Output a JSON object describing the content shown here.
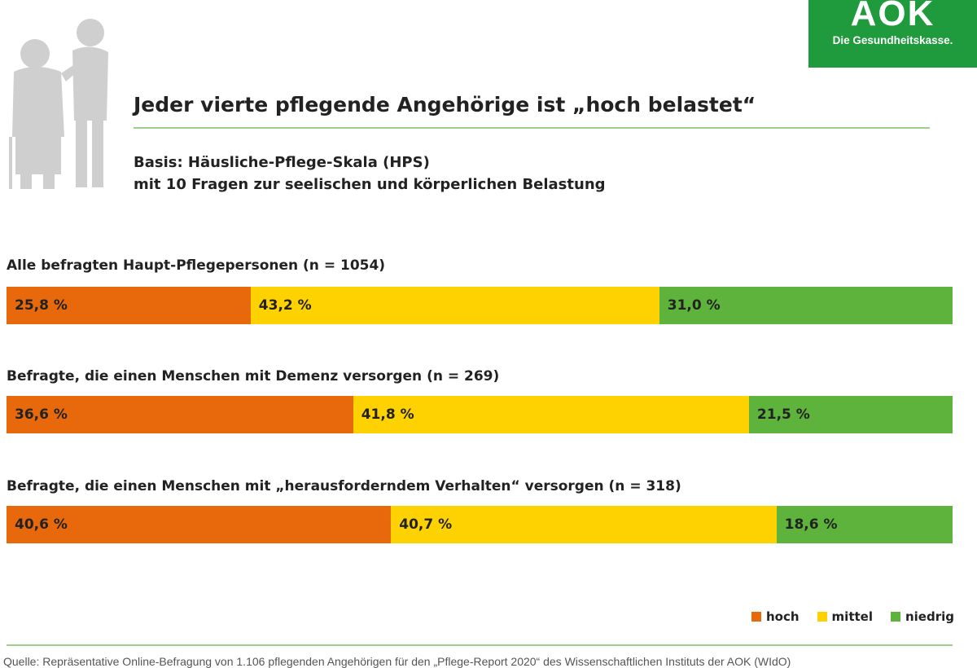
{
  "logo": {
    "mark": "AOK",
    "tagline": "Die Gesundheitskasse."
  },
  "header": {
    "title": "Jeder vierte pflegende Angehörige ist „hoch belastet“",
    "subtitle_line1": "Basis: Häusliche-Pflege-Skala (HPS)",
    "subtitle_line2": "mit 10 Fragen zur seelischen und körperlichen Belastung"
  },
  "colors": {
    "hoch": "#e8690c",
    "mittel": "#fdd200",
    "niedrig": "#5db33b",
    "brand": "#1f9a3c"
  },
  "chart_data": {
    "type": "bar",
    "orientation": "horizontal-stacked-100",
    "title": "Jeder vierte pflegende Angehörige ist „hoch belastet“",
    "categories": [
      "Alle befragten Haupt-Pflegepersonen (n = 1054)",
      "Befragte, die einen Menschen mit Demenz versorgen (n = 269)",
      "Befragte, die einen Menschen mit „herausforderndem Verhalten“ versorgen (n = 318)"
    ],
    "series": [
      {
        "name": "hoch",
        "values": [
          25.8,
          36.6,
          40.6
        ],
        "labels": [
          "25,8 %",
          "36,6 %",
          "40,6 %"
        ]
      },
      {
        "name": "mittel",
        "values": [
          43.2,
          41.8,
          40.7
        ],
        "labels": [
          "43,2 %",
          "41,8 %",
          "40,7 %"
        ]
      },
      {
        "name": "niedrig",
        "values": [
          31.0,
          21.5,
          18.6
        ],
        "labels": [
          "31,0 %",
          "21,5 %",
          "18,6 %"
        ]
      }
    ],
    "xlim": [
      0,
      100
    ],
    "legend": {
      "position": "bottom-right",
      "entries": [
        "hoch",
        "mittel",
        "niedrig"
      ]
    }
  },
  "footer": {
    "source": "Quelle: Repräsentative Online-Befragung von 1.106 pflegenden Angehörigen für den „Pflege-Report 2020“ des Wissenschaftlichen Instituts der AOK (WIdO)"
  }
}
